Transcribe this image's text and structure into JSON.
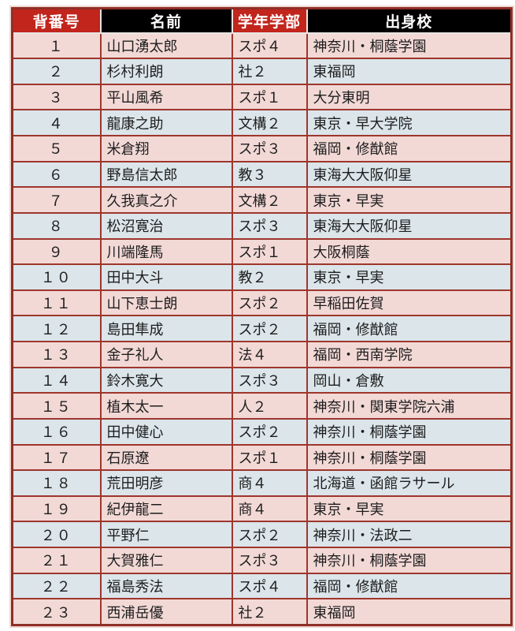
{
  "colors": {
    "header_red": "#c1251c",
    "header_black": "#000000",
    "row_pink": "#f2d9d6",
    "row_blue": "#dbe5ea",
    "border_dark": "#9e362c",
    "border_outer": "#8f2f26",
    "header_divider": "#e9e5e2",
    "halo": "#f0d8d3",
    "text": "#1d1d1d"
  },
  "table": {
    "headers": [
      {
        "label": "背番号",
        "bg": "#c1251c"
      },
      {
        "label": "名前",
        "bg": "#000000"
      },
      {
        "label": "学年学部",
        "bg": "#c1251c"
      },
      {
        "label": "出身校",
        "bg": "#000000"
      }
    ],
    "rows": [
      {
        "number": "１",
        "name": "山口湧太郎",
        "grade_faculty": "スポ４",
        "school": "神奈川・桐蔭学園"
      },
      {
        "number": "２",
        "name": "杉村利朗",
        "grade_faculty": "社２",
        "school": "東福岡"
      },
      {
        "number": "３",
        "name": "平山風希",
        "grade_faculty": "スポ１",
        "school": "大分東明"
      },
      {
        "number": "４",
        "name": "龍康之助",
        "grade_faculty": "文構２",
        "school": "東京・早大学院"
      },
      {
        "number": "５",
        "name": "米倉翔",
        "grade_faculty": "スポ３",
        "school": "福岡・修猷館"
      },
      {
        "number": "６",
        "name": "野島信太郎",
        "grade_faculty": "教３",
        "school": "東海大大阪仰星"
      },
      {
        "number": "７",
        "name": "久我真之介",
        "grade_faculty": "文構２",
        "school": "東京・早実"
      },
      {
        "number": "８",
        "name": "松沼寛治",
        "grade_faculty": "スポ３",
        "school": "東海大大阪仰星"
      },
      {
        "number": "９",
        "name": "川端隆馬",
        "grade_faculty": "スポ１",
        "school": "大阪桐蔭"
      },
      {
        "number": "１０",
        "name": "田中大斗",
        "grade_faculty": "教２",
        "school": "東京・早実"
      },
      {
        "number": "１１",
        "name": "山下恵士朗",
        "grade_faculty": "スポ２",
        "school": "早稲田佐賀"
      },
      {
        "number": "１２",
        "name": "島田隼成",
        "grade_faculty": "スポ２",
        "school": "福岡・修猷館"
      },
      {
        "number": "１３",
        "name": "金子礼人",
        "grade_faculty": "法４",
        "school": "福岡・西南学院"
      },
      {
        "number": "１４",
        "name": "鈴木寛大",
        "grade_faculty": "スポ３",
        "school": "岡山・倉敷"
      },
      {
        "number": "１５",
        "name": "植木太一",
        "grade_faculty": "人２",
        "school": "神奈川・関東学院六浦"
      },
      {
        "number": "１６",
        "name": "田中健心",
        "grade_faculty": "スポ２",
        "school": "神奈川・桐蔭学園"
      },
      {
        "number": "１７",
        "name": "石原遼",
        "grade_faculty": "スポ１",
        "school": "神奈川・桐蔭学園"
      },
      {
        "number": "１８",
        "name": "荒田明彦",
        "grade_faculty": "商４",
        "school": "北海道・函館ラサール"
      },
      {
        "number": "１９",
        "name": "紀伊龍二",
        "grade_faculty": "商４",
        "school": "東京・早実"
      },
      {
        "number": "２０",
        "name": "平野仁",
        "grade_faculty": "スポ２",
        "school": "神奈川・法政二"
      },
      {
        "number": "２１",
        "name": "大賀雅仁",
        "grade_faculty": "スポ３",
        "school": "神奈川・桐蔭学園"
      },
      {
        "number": "２２",
        "name": "福島秀法",
        "grade_faculty": "スポ４",
        "school": "福岡・修猷館"
      },
      {
        "number": "２３",
        "name": "西浦岳優",
        "grade_faculty": "社２",
        "school": "東福岡"
      }
    ]
  }
}
